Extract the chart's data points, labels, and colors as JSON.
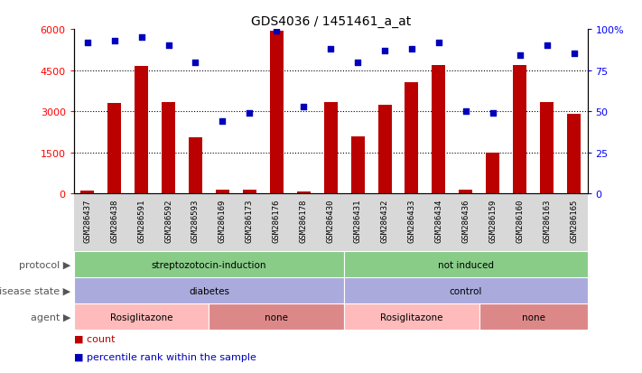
{
  "title": "GDS4036 / 1451461_a_at",
  "samples": [
    "GSM286437",
    "GSM286438",
    "GSM286591",
    "GSM286592",
    "GSM286593",
    "GSM286169",
    "GSM286173",
    "GSM286176",
    "GSM286178",
    "GSM286430",
    "GSM286431",
    "GSM286432",
    "GSM286433",
    "GSM286434",
    "GSM286436",
    "GSM286159",
    "GSM286160",
    "GSM286163",
    "GSM286165"
  ],
  "counts": [
    120,
    3300,
    4650,
    3350,
    2050,
    150,
    150,
    5950,
    80,
    3350,
    2100,
    3250,
    4050,
    4700,
    130,
    1500,
    4700,
    3350,
    2900
  ],
  "percentiles": [
    92,
    93,
    95,
    90,
    80,
    44,
    49,
    99,
    53,
    88,
    80,
    87,
    88,
    92,
    50,
    49,
    84,
    90,
    85
  ],
  "ylim_left": [
    0,
    6000
  ],
  "ylim_right": [
    0,
    100
  ],
  "yticks_left": [
    0,
    1500,
    3000,
    4500,
    6000
  ],
  "yticks_right": [
    0,
    25,
    50,
    75,
    100
  ],
  "bar_color": "#BB0000",
  "dot_color": "#0000BB",
  "xtick_bg": "#D8D8D8",
  "proto_groups": [
    {
      "label": "streptozotocin-induction",
      "start": 0,
      "end": 10,
      "color": "#88CC88"
    },
    {
      "label": "not induced",
      "start": 10,
      "end": 19,
      "color": "#88CC88"
    }
  ],
  "disease_groups": [
    {
      "label": "diabetes",
      "start": 0,
      "end": 10,
      "color": "#AAAADD"
    },
    {
      "label": "control",
      "start": 10,
      "end": 19,
      "color": "#AAAADD"
    }
  ],
  "agent_groups": [
    {
      "label": "Rosiglitazone",
      "start": 0,
      "end": 5,
      "color": "#FFBBBB"
    },
    {
      "label": "none",
      "start": 5,
      "end": 10,
      "color": "#DD8888"
    },
    {
      "label": "Rosiglitazone",
      "start": 10,
      "end": 15,
      "color": "#FFBBBB"
    },
    {
      "label": "none",
      "start": 15,
      "end": 19,
      "color": "#DD8888"
    }
  ],
  "legend_count_color": "#BB0000",
  "legend_dot_color": "#0000BB",
  "gridline_color": "black",
  "gridline_ticks": [
    1500,
    3000,
    4500
  ]
}
